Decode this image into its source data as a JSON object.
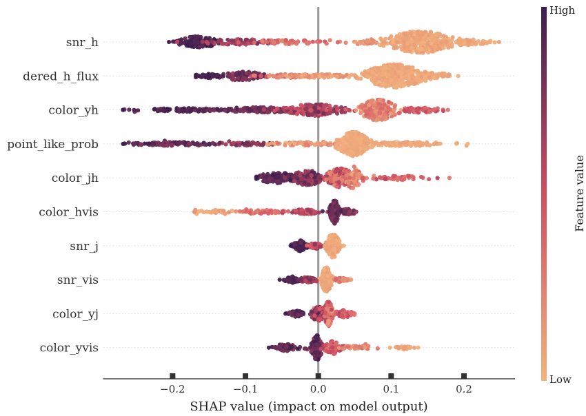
{
  "chart_data": {
    "type": "scatter",
    "subtype": "shap-beeswarm",
    "xlabel": "SHAP value (impact on model output)",
    "xlim": [
      -0.295,
      0.27
    ],
    "xticks": [
      -0.2,
      -0.1,
      0.0,
      0.1,
      0.2
    ],
    "xtick_labels": [
      "−0.2",
      "−0.1",
      "0.0",
      "0.1",
      "0.2"
    ],
    "zero_line": true,
    "grid": false,
    "colorbar": {
      "title": "Feature value",
      "high_label": "High",
      "low_label": "Low",
      "high_color": "#3b1f4f",
      "mid_color": "#d14e63",
      "low_color": "#f1b27d"
    },
    "features": [
      {
        "name": "snr_h",
        "min": -0.205,
        "max": 0.248,
        "clusters": [
          {
            "center": -0.165,
            "spread": 0.025,
            "height": 0.38,
            "count": 120,
            "color_range": [
              0.88,
              1.0
            ]
          },
          {
            "center": -0.11,
            "spread": 0.04,
            "height": 0.2,
            "count": 60,
            "color_range": [
              0.55,
              0.85
            ]
          },
          {
            "center": -0.04,
            "spread": 0.04,
            "height": 0.14,
            "count": 45,
            "color_range": [
              0.2,
              0.45
            ]
          },
          {
            "center": 0.14,
            "spread": 0.04,
            "height": 0.72,
            "count": 300,
            "color_range": [
              0.0,
              0.12
            ]
          },
          {
            "center": 0.2,
            "spread": 0.03,
            "height": 0.2,
            "count": 50,
            "color_range": [
              0.0,
              0.1
            ]
          },
          {
            "center": 0.07,
            "spread": 0.02,
            "height": 0.12,
            "count": 25,
            "color_range": [
              0.05,
              0.25
            ]
          }
        ]
      },
      {
        "name": "dered_h_flux",
        "min": -0.168,
        "max": 0.192,
        "clusters": [
          {
            "center": -0.15,
            "spread": 0.02,
            "height": 0.15,
            "count": 45,
            "color_range": [
              0.88,
              1.0
            ]
          },
          {
            "center": -0.105,
            "spread": 0.025,
            "height": 0.3,
            "count": 80,
            "color_range": [
              0.7,
              0.95
            ]
          },
          {
            "center": -0.04,
            "spread": 0.04,
            "height": 0.12,
            "count": 60,
            "color_range": [
              0.2,
              0.5
            ]
          },
          {
            "center": 0.0,
            "spread": 0.05,
            "height": 0.12,
            "count": 70,
            "color_range": [
              0.0,
              0.2
            ]
          },
          {
            "center": 0.105,
            "spread": 0.035,
            "height": 0.78,
            "count": 320,
            "color_range": [
              0.0,
              0.1
            ]
          },
          {
            "center": 0.16,
            "spread": 0.02,
            "height": 0.2,
            "count": 40,
            "color_range": [
              0.0,
              0.1
            ]
          }
        ]
      },
      {
        "name": "color_yh",
        "min": -0.268,
        "max": 0.178,
        "clusters": [
          {
            "center": -0.18,
            "spread": 0.05,
            "height": 0.12,
            "count": 90,
            "color_range": [
              0.85,
              1.0
            ]
          },
          {
            "center": -0.08,
            "spread": 0.045,
            "height": 0.18,
            "count": 110,
            "color_range": [
              0.75,
              0.95
            ]
          },
          {
            "center": -0.005,
            "spread": 0.035,
            "height": 0.4,
            "count": 160,
            "color_range": [
              0.45,
              0.85
            ]
          },
          {
            "center": 0.082,
            "spread": 0.022,
            "height": 0.7,
            "count": 200,
            "color_range": [
              0.05,
              0.45
            ]
          },
          {
            "center": 0.14,
            "spread": 0.025,
            "height": 0.18,
            "count": 50,
            "color_range": [
              0.3,
              0.6
            ]
          }
        ]
      },
      {
        "name": "point_like_prob",
        "min": -0.268,
        "max": 0.205,
        "clusters": [
          {
            "center": -0.2,
            "spread": 0.045,
            "height": 0.12,
            "count": 90,
            "color_range": [
              0.75,
              1.0
            ]
          },
          {
            "center": -0.1,
            "spread": 0.03,
            "height": 0.12,
            "count": 40,
            "color_range": [
              0.6,
              0.9
            ]
          },
          {
            "center": -0.02,
            "spread": 0.04,
            "height": 0.12,
            "count": 60,
            "color_range": [
              0.0,
              0.3
            ]
          },
          {
            "center": 0.048,
            "spread": 0.018,
            "height": 0.8,
            "count": 260,
            "color_range": [
              0.0,
              0.08
            ]
          },
          {
            "center": 0.12,
            "spread": 0.045,
            "height": 0.14,
            "count": 70,
            "color_range": [
              0.0,
              0.1
            ]
          }
        ]
      },
      {
        "name": "color_jh",
        "min": -0.085,
        "max": 0.18,
        "clusters": [
          {
            "center": -0.055,
            "spread": 0.025,
            "height": 0.35,
            "count": 110,
            "color_range": [
              0.78,
              1.0
            ]
          },
          {
            "center": -0.015,
            "spread": 0.018,
            "height": 0.5,
            "count": 120,
            "color_range": [
              0.6,
              0.95
            ]
          },
          {
            "center": 0.03,
            "spread": 0.018,
            "height": 0.62,
            "count": 140,
            "color_range": [
              0.2,
              0.7
            ]
          },
          {
            "center": 0.048,
            "spread": 0.01,
            "height": 0.75,
            "count": 70,
            "color_range": [
              0.05,
              0.4
            ]
          },
          {
            "center": 0.11,
            "spread": 0.03,
            "height": 0.14,
            "count": 40,
            "color_range": [
              0.3,
              0.6
            ]
          }
        ]
      },
      {
        "name": "color_hvis",
        "min": -0.17,
        "max": 0.052,
        "clusters": [
          {
            "center": -0.13,
            "spread": 0.025,
            "height": 0.08,
            "count": 25,
            "color_range": [
              0.0,
              0.15
            ]
          },
          {
            "center": -0.07,
            "spread": 0.03,
            "height": 0.12,
            "count": 45,
            "color_range": [
              0.2,
              0.45
            ]
          },
          {
            "center": -0.02,
            "spread": 0.02,
            "height": 0.16,
            "count": 60,
            "color_range": [
              0.4,
              0.7
            ]
          },
          {
            "center": 0.022,
            "spread": 0.005,
            "height": 0.8,
            "count": 120,
            "color_range": [
              0.75,
              1.0
            ]
          },
          {
            "center": 0.04,
            "spread": 0.006,
            "height": 0.2,
            "count": 25,
            "color_range": [
              0.7,
              0.95
            ]
          }
        ]
      },
      {
        "name": "snr_j",
        "min": -0.038,
        "max": 0.035,
        "clusters": [
          {
            "center": -0.025,
            "spread": 0.007,
            "height": 0.35,
            "count": 55,
            "color_range": [
              0.85,
              1.0
            ]
          },
          {
            "center": -0.005,
            "spread": 0.008,
            "height": 0.2,
            "count": 40,
            "color_range": [
              0.4,
              0.8
            ]
          },
          {
            "center": 0.02,
            "spread": 0.008,
            "height": 0.8,
            "count": 140,
            "color_range": [
              0.0,
              0.1
            ]
          }
        ]
      },
      {
        "name": "snr_vis",
        "min": -0.053,
        "max": 0.045,
        "clusters": [
          {
            "center": -0.035,
            "spread": 0.008,
            "height": 0.22,
            "count": 45,
            "color_range": [
              0.88,
              1.0
            ]
          },
          {
            "center": -0.015,
            "spread": 0.01,
            "height": 0.18,
            "count": 40,
            "color_range": [
              0.5,
              0.85
            ]
          },
          {
            "center": 0.011,
            "spread": 0.006,
            "height": 0.82,
            "count": 140,
            "color_range": [
              0.0,
              0.1
            ]
          },
          {
            "center": 0.03,
            "spread": 0.007,
            "height": 0.14,
            "count": 30,
            "color_range": [
              0.1,
              0.4
            ]
          }
        ]
      },
      {
        "name": "color_yj",
        "min": -0.045,
        "max": 0.05,
        "clusters": [
          {
            "center": -0.03,
            "spread": 0.008,
            "height": 0.2,
            "count": 45,
            "color_range": [
              0.8,
              1.0
            ]
          },
          {
            "center": 0.0,
            "spread": 0.008,
            "height": 0.5,
            "count": 90,
            "color_range": [
              0.4,
              0.95
            ]
          },
          {
            "center": 0.014,
            "spread": 0.005,
            "height": 0.82,
            "count": 120,
            "color_range": [
              0.1,
              0.6
            ]
          },
          {
            "center": 0.035,
            "spread": 0.01,
            "height": 0.25,
            "count": 40,
            "color_range": [
              0.3,
              0.6
            ]
          }
        ]
      },
      {
        "name": "color_yvis",
        "min": -0.068,
        "max": 0.137,
        "clusters": [
          {
            "center": -0.045,
            "spread": 0.013,
            "height": 0.24,
            "count": 60,
            "color_range": [
              0.78,
              1.0
            ]
          },
          {
            "center": -0.002,
            "spread": 0.006,
            "height": 0.82,
            "count": 140,
            "color_range": [
              0.7,
              1.0
            ]
          },
          {
            "center": 0.02,
            "spread": 0.01,
            "height": 0.45,
            "count": 70,
            "color_range": [
              0.3,
              0.6
            ]
          },
          {
            "center": 0.05,
            "spread": 0.015,
            "height": 0.12,
            "count": 25,
            "color_range": [
              0.1,
              0.35
            ]
          },
          {
            "center": 0.12,
            "spread": 0.012,
            "height": 0.08,
            "count": 18,
            "color_range": [
              0.0,
              0.12
            ]
          }
        ]
      }
    ]
  }
}
